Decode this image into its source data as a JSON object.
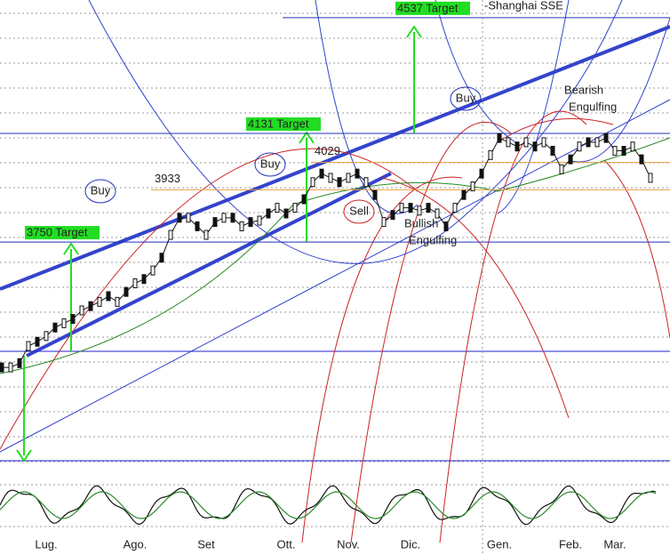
{
  "chart_data": {
    "type": "line",
    "title": "-Shanghai SSE",
    "categories": [
      null,
      null,
      null,
      null,
      null,
      "Lug.",
      null,
      null,
      null,
      null,
      null,
      null,
      null,
      null,
      null,
      "Ago.",
      null,
      null,
      null,
      null,
      null,
      null,
      null,
      "Set",
      null,
      null,
      null,
      null,
      null,
      null,
      null,
      null,
      "Ott.",
      null,
      null,
      null,
      null,
      null,
      null,
      "Nov.",
      null,
      null,
      null,
      null,
      null,
      null,
      "Dic.",
      null,
      null,
      null,
      null,
      null,
      null,
      null,
      null,
      null,
      "Gen.",
      null,
      null,
      null,
      null,
      null,
      null,
      null,
      "Feb.",
      null,
      null,
      null,
      null,
      "Mar.",
      null,
      null,
      null,
      null
    ],
    "values": [
      3310,
      3310,
      3325,
      3385,
      3400,
      3420,
      3450,
      3465,
      3480,
      3510,
      3525,
      3540,
      3560,
      3540,
      3575,
      3605,
      3620,
      3650,
      3695,
      3775,
      3835,
      3835,
      3805,
      3775,
      3820,
      3835,
      3835,
      3805,
      3820,
      3825,
      3850,
      3870,
      3850,
      3870,
      3900,
      3960,
      3990,
      3975,
      3960,
      3975,
      3990,
      3960,
      3915,
      3820,
      3845,
      3870,
      3870,
      3860,
      3870,
      3850,
      3805,
      3870,
      3915,
      3945,
      3990,
      4055,
      4115,
      4100,
      4085,
      4100,
      4085,
      4100,
      4070,
      4005,
      4040,
      4085,
      4100,
      4100,
      4115,
      4070,
      4070,
      4085,
      4040,
      3975
    ],
    "color": "#111111",
    "ylim": [
      2914,
      4599
    ],
    "targets": [
      {
        "value": 4537,
        "label": "4537 Target"
      },
      {
        "value": 4131,
        "label": "4131 Target"
      },
      {
        "value": 3750,
        "label": "3750 Target"
      }
    ],
    "target_color": "#22dd22",
    "levels": [
      3933,
      4029
    ],
    "level_color": "#e8a040",
    "annotations": [
      "Buy",
      "Buy",
      "Buy",
      "Sell",
      [
        "Bullish",
        "Engulfing"
      ],
      [
        "Bearish",
        "Engulfing"
      ]
    ]
  }
}
